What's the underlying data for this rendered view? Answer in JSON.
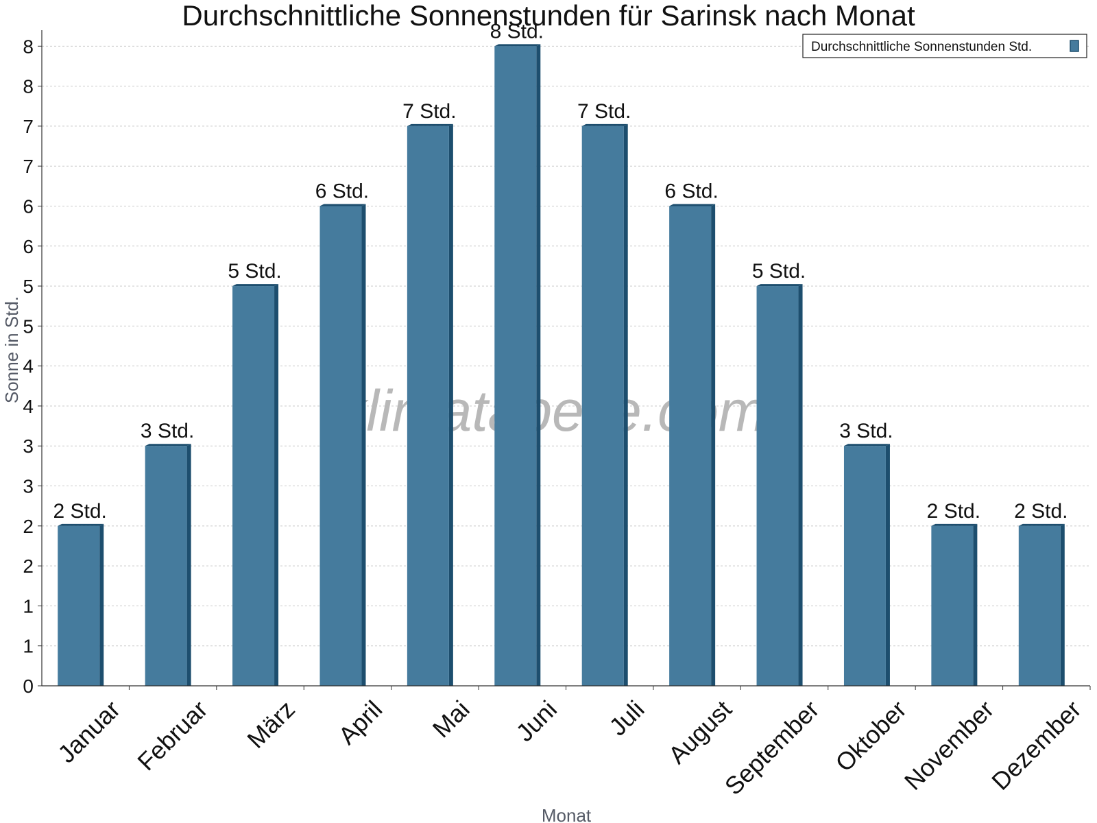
{
  "chart_data": {
    "type": "bar",
    "title": "Durchschnittliche Sonnenstunden für Sarinsk nach Monat",
    "xlabel": "Monat",
    "ylabel": "Sonne in Std.",
    "categories": [
      "Januar",
      "Februar",
      "März",
      "April",
      "Mai",
      "Juni",
      "Juli",
      "August",
      "September",
      "Oktober",
      "November",
      "Dezember"
    ],
    "series": [
      {
        "name": "Durchschnittliche Sonnenstunden Std.",
        "values": [
          2,
          3,
          5,
          6,
          7,
          8,
          7,
          6,
          5,
          3,
          2,
          2
        ],
        "data_labels": [
          "2 Std.",
          "3 Std.",
          "5 Std.",
          "6 Std.",
          "7 Std.",
          "8 Std.",
          "7 Std.",
          "6 Std.",
          "5 Std.",
          "3 Std.",
          "2 Std.",
          "2 Std."
        ],
        "color": "#457b9d",
        "edge_color": "#1d4e6e"
      }
    ],
    "ylim": [
      0,
      8.2
    ],
    "y_ticks": [
      0,
      0.5,
      1,
      1.5,
      2,
      2.5,
      3,
      3.5,
      4,
      4.5,
      5,
      5.5,
      6,
      6.5,
      7,
      7.5,
      8
    ],
    "y_tick_labels": [
      "0",
      "1",
      "1",
      "2",
      "2",
      "3",
      "3",
      "4",
      "4",
      "5",
      "5",
      "6",
      "6",
      "7",
      "7",
      "8",
      "8"
    ],
    "grid": true,
    "legend_position": "top-right",
    "watermark": "klimatabelle.com"
  }
}
